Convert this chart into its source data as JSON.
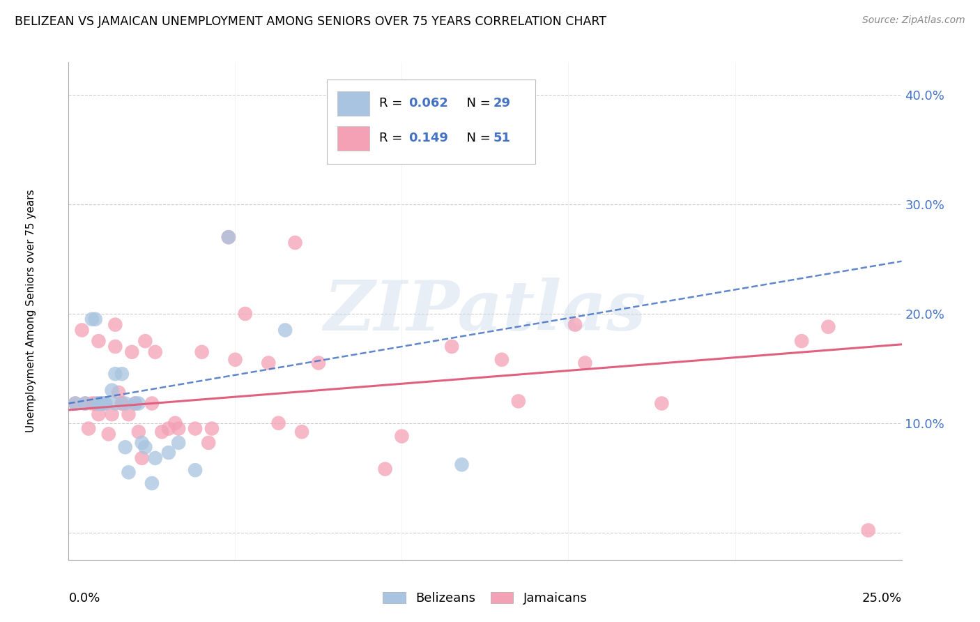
{
  "title": "BELIZEAN VS JAMAICAN UNEMPLOYMENT AMONG SENIORS OVER 75 YEARS CORRELATION CHART",
  "source": "Source: ZipAtlas.com",
  "ylabel": "Unemployment Among Seniors over 75 years",
  "right_yticks": [
    0.0,
    0.1,
    0.2,
    0.3,
    0.4
  ],
  "right_yticklabels": [
    "",
    "10.0%",
    "20.0%",
    "30.0%",
    "40.0%"
  ],
  "xlim": [
    0.0,
    0.25
  ],
  "ylim": [
    -0.025,
    0.43
  ],
  "label_belizeans": "Belizeans",
  "label_jamaicans": "Jamaicans",
  "color_blue": "#a8c4e0",
  "color_pink": "#f4a0b5",
  "color_blue_text": "#4472c4",
  "color_pink_text": "#e06080",
  "watermark": "ZIPatlas",
  "belizean_x": [
    0.002,
    0.005,
    0.007,
    0.008,
    0.009,
    0.009,
    0.01,
    0.01,
    0.011,
    0.011,
    0.013,
    0.014,
    0.014,
    0.016,
    0.017,
    0.017,
    0.018,
    0.02,
    0.021,
    0.022,
    0.023,
    0.025,
    0.026,
    0.03,
    0.033,
    0.038,
    0.048,
    0.065,
    0.118
  ],
  "belizean_y": [
    0.118,
    0.118,
    0.195,
    0.195,
    0.118,
    0.118,
    0.118,
    0.118,
    0.118,
    0.118,
    0.13,
    0.145,
    0.118,
    0.145,
    0.118,
    0.078,
    0.055,
    0.118,
    0.118,
    0.082,
    0.078,
    0.045,
    0.068,
    0.073,
    0.082,
    0.057,
    0.27,
    0.185,
    0.062
  ],
  "jamaican_x": [
    0.002,
    0.004,
    0.005,
    0.006,
    0.007,
    0.008,
    0.009,
    0.009,
    0.01,
    0.012,
    0.013,
    0.014,
    0.014,
    0.015,
    0.016,
    0.016,
    0.018,
    0.019,
    0.02,
    0.021,
    0.022,
    0.023,
    0.025,
    0.026,
    0.028,
    0.03,
    0.032,
    0.033,
    0.038,
    0.04,
    0.042,
    0.043,
    0.048,
    0.05,
    0.053,
    0.06,
    0.063,
    0.068,
    0.07,
    0.075,
    0.095,
    0.1,
    0.115,
    0.13,
    0.135,
    0.152,
    0.155,
    0.178,
    0.22,
    0.228,
    0.24
  ],
  "jamaican_y": [
    0.118,
    0.185,
    0.118,
    0.095,
    0.118,
    0.118,
    0.175,
    0.108,
    0.118,
    0.09,
    0.108,
    0.17,
    0.19,
    0.128,
    0.118,
    0.118,
    0.108,
    0.165,
    0.118,
    0.092,
    0.068,
    0.175,
    0.118,
    0.165,
    0.092,
    0.095,
    0.1,
    0.095,
    0.095,
    0.165,
    0.082,
    0.095,
    0.27,
    0.158,
    0.2,
    0.155,
    0.1,
    0.265,
    0.092,
    0.155,
    0.058,
    0.088,
    0.17,
    0.158,
    0.12,
    0.19,
    0.155,
    0.118,
    0.175,
    0.188,
    0.002
  ],
  "blue_trend_x": [
    0.0,
    0.25
  ],
  "blue_trend_y": [
    0.118,
    0.248
  ],
  "pink_trend_x": [
    0.0,
    0.25
  ],
  "pink_trend_y": [
    0.112,
    0.172
  ],
  "grid_yticks": [
    0.0,
    0.1,
    0.2,
    0.3,
    0.4
  ],
  "xtick_minor": [
    0.05,
    0.1,
    0.15,
    0.2
  ]
}
